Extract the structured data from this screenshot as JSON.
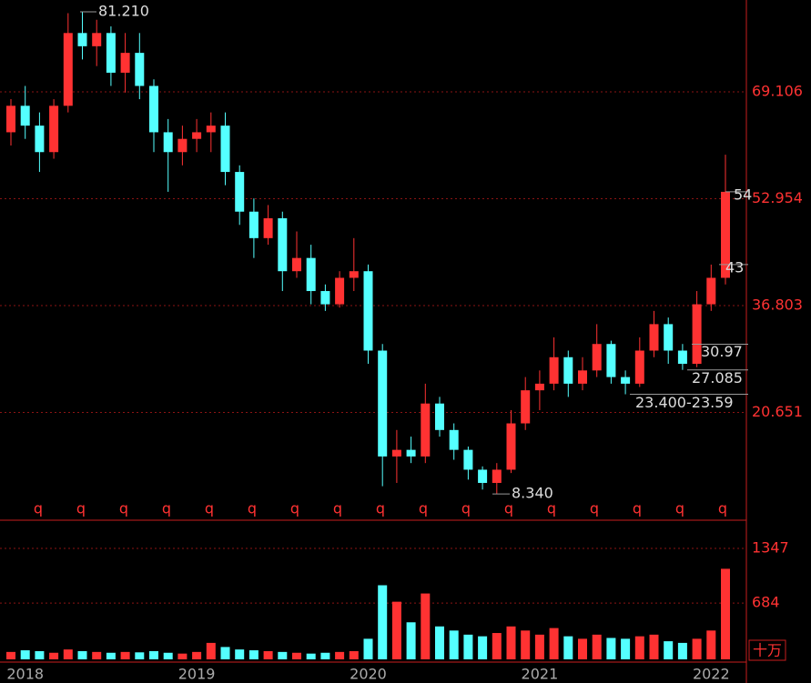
{
  "chart_data": {
    "type": "candlestick",
    "categories": [
      null,
      "2018",
      null,
      null,
      null,
      null,
      null,
      null,
      null,
      null,
      null,
      null,
      null,
      "2019",
      null,
      null,
      null,
      null,
      null,
      null,
      null,
      null,
      null,
      null,
      null,
      "2020",
      null,
      null,
      null,
      null,
      null,
      null,
      null,
      null,
      null,
      null,
      null,
      "2021",
      null,
      null,
      null,
      null,
      null,
      null,
      null,
      null,
      null,
      null,
      null,
      "2022",
      null
    ],
    "open": [
      63,
      67,
      64,
      60,
      67,
      78,
      76,
      78,
      72,
      75,
      70,
      63,
      60,
      62,
      63,
      64,
      57,
      51,
      47,
      50,
      42,
      44,
      39,
      37,
      41,
      42,
      30,
      14,
      15,
      14,
      22,
      18,
      15,
      12,
      10,
      12,
      19,
      24,
      25,
      29,
      25,
      27,
      31,
      26,
      25,
      30,
      34,
      30,
      28,
      37,
      41
    ],
    "high": [
      68,
      70,
      66,
      68,
      81,
      81.21,
      80,
      79,
      78,
      78,
      71,
      65,
      64,
      65,
      66,
      66,
      58,
      53,
      52,
      51,
      48,
      46,
      40,
      42,
      47,
      43,
      31,
      18,
      17,
      25,
      23,
      19,
      15.5,
      12.5,
      13,
      21,
      26,
      27,
      32,
      30,
      29,
      34,
      31.5,
      27,
      32,
      36,
      35,
      31,
      39,
      43,
      59.6
    ],
    "low": [
      61,
      62,
      57,
      59,
      66,
      74,
      73,
      70,
      69,
      68,
      60,
      54,
      58,
      60,
      60,
      55,
      49,
      44,
      46,
      39,
      41,
      37,
      36,
      36.5,
      39,
      28,
      9.5,
      10,
      13,
      13,
      17,
      13.5,
      10.5,
      9,
      8.34,
      11.5,
      18,
      21,
      24,
      23,
      24,
      26,
      25,
      23.4,
      24.5,
      29,
      28,
      27.085,
      27.5,
      36,
      40
    ],
    "close": [
      67,
      64,
      60,
      67,
      78,
      76,
      78,
      72,
      75,
      70,
      63,
      60,
      62,
      63,
      64,
      57,
      51,
      47,
      50,
      42,
      44,
      39,
      37,
      41,
      42,
      30,
      14,
      15,
      14,
      22,
      18,
      15,
      12,
      10,
      12,
      19,
      24,
      25,
      29,
      25,
      27,
      31,
      26,
      25,
      30,
      34,
      30,
      28,
      37,
      41,
      54
    ],
    "volume": [
      90,
      110,
      100,
      80,
      120,
      100,
      90,
      80,
      90,
      85,
      100,
      80,
      70,
      90,
      200,
      150,
      120,
      110,
      100,
      90,
      80,
      70,
      80,
      90,
      100,
      250,
      900,
      700,
      450,
      800,
      400,
      350,
      300,
      280,
      320,
      400,
      350,
      300,
      380,
      280,
      250,
      300,
      260,
      250,
      280,
      300,
      220,
      200,
      250,
      350,
      1100
    ],
    "ylim": [
      4.64,
      82.99
    ],
    "yticks": [
      20.651,
      36.803,
      52.954,
      69.106
    ],
    "vol_ylim": [
      0,
      1679
    ],
    "vol_yticks": [
      684,
      1347
    ],
    "volume_unit": "十万",
    "up_color": "#ff3232",
    "down_color": "#54ffff",
    "marker_label": "q",
    "annotations": [
      {
        "label": "81.210",
        "value": 81.21
      },
      {
        "label": "8.340",
        "value": 8.34
      },
      {
        "label": "54",
        "value": 54
      },
      {
        "label": "43",
        "value": 43
      },
      {
        "label": "30.97",
        "value": 30.97
      },
      {
        "label": "27.085",
        "value": 27.085
      },
      {
        "label": "23.400-23.59",
        "value": 23.4
      }
    ],
    "grid": true
  }
}
